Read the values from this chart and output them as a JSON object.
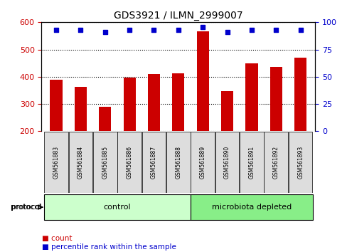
{
  "title": "GDS3921 / ILMN_2999007",
  "samples": [
    "GSM561883",
    "GSM561884",
    "GSM561885",
    "GSM561886",
    "GSM561887",
    "GSM561888",
    "GSM561889",
    "GSM561890",
    "GSM561891",
    "GSM561892",
    "GSM561893"
  ],
  "counts": [
    390,
    362,
    290,
    396,
    410,
    413,
    568,
    347,
    450,
    436,
    470
  ],
  "percentile_ranks": [
    93,
    93,
    91,
    93,
    93,
    93,
    96,
    91,
    93,
    93,
    93
  ],
  "groups": [
    "control",
    "control",
    "control",
    "control",
    "control",
    "control",
    "microbiota depleted",
    "microbiota depleted",
    "microbiota depleted",
    "microbiota depleted",
    "microbiota depleted"
  ],
  "ylim_left": [
    200,
    600
  ],
  "ylim_right": [
    0,
    100
  ],
  "yticks_left": [
    200,
    300,
    400,
    500,
    600
  ],
  "yticks_right": [
    0,
    25,
    50,
    75,
    100
  ],
  "bar_color": "#cc0000",
  "dot_color": "#0000cc",
  "control_color": "#ccffcc",
  "depleted_color": "#88ee88",
  "tick_bg_color": "#dddddd",
  "grid_color": "#000000",
  "left_tick_color": "#cc0000",
  "right_tick_color": "#0000cc",
  "fig_width": 4.89,
  "fig_height": 3.54
}
